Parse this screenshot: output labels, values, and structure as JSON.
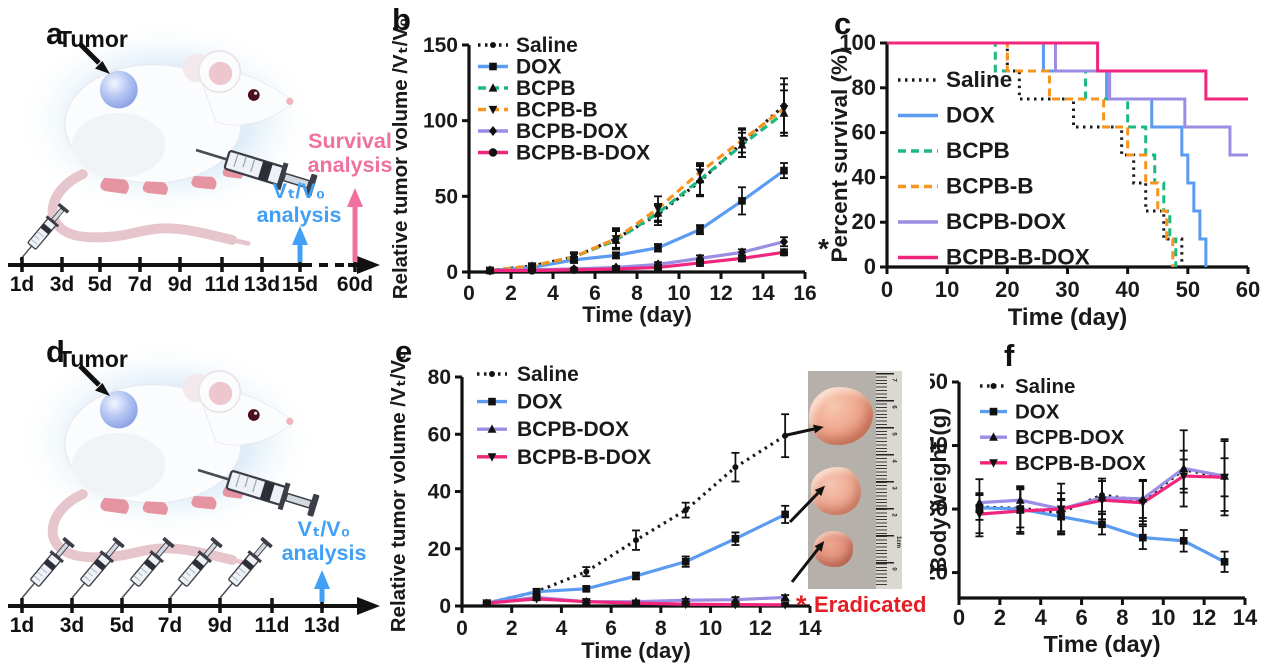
{
  "colors": {
    "black": "#1a1a1a",
    "dox_blue": "#5b9bf0",
    "bcpb_green": "#1db983",
    "bcpbb_orange": "#f7941d",
    "bcpbdox_purple": "#9b8ce4",
    "bcpbbdox_pink": "#f0267c",
    "analysis_blue": "#41a0f5",
    "analysis_pink": "#f0719f",
    "eradicated_red": "#e31e24"
  },
  "panel_a": {
    "label": "a",
    "tumor_label": "Tumor",
    "timeline": [
      "1d",
      "3d",
      "5d",
      "7d",
      "9d",
      "11d",
      "13d",
      "15d",
      "60d"
    ],
    "vt_analysis": "Vₜ/V₀\nanalysis",
    "survival_analysis": "Survival\nanalysis"
  },
  "panel_d": {
    "label": "d",
    "tumor_label": "Tumor",
    "timeline": [
      "1d",
      "3d",
      "5d",
      "7d",
      "9d",
      "11d",
      "13d"
    ],
    "vt_analysis": "Vₜ/V₀\nanalysis"
  },
  "panel_b": {
    "label": "b"
  },
  "panel_c": {
    "label": "c"
  },
  "panel_e": {
    "label": "e"
  },
  "panel_f": {
    "label": "f"
  },
  "photo": {
    "ruler_numbers": [
      "7",
      "6",
      "5",
      "4",
      "3",
      "2",
      "1cm",
      "0"
    ]
  },
  "chart_data": [
    {
      "id": "b",
      "type": "line",
      "xlabel": "Time (day)",
      "ylabel": "Relative tumor volume /Vₜ/V₀",
      "xlim": [
        0,
        16
      ],
      "ylim": [
        0,
        150
      ],
      "xticks": [
        0,
        2,
        4,
        6,
        8,
        10,
        12,
        14,
        16
      ],
      "yticks": [
        0,
        50,
        100,
        150
      ],
      "x": [
        1,
        3,
        5,
        7,
        9,
        11,
        13,
        15
      ],
      "series": [
        {
          "name": "Saline",
          "color": "#1a1a1a",
          "linestyle": "dotted",
          "marker": "dot",
          "values": [
            1,
            4,
            10,
            22,
            38,
            60,
            85,
            110
          ],
          "errors": [
            0.5,
            1.5,
            3,
            6,
            7,
            10,
            9,
            18
          ]
        },
        {
          "name": "DOX",
          "color": "#5b9bf0",
          "linestyle": "solid",
          "marker": "square",
          "values": [
            1,
            3,
            8,
            11,
            16,
            28,
            47,
            67
          ],
          "errors": [
            0.5,
            1.5,
            2,
            2,
            2.5,
            3,
            9,
            5
          ]
        },
        {
          "name": "BCPB",
          "color": "#1db983",
          "linestyle": "dashed",
          "marker": "triangle",
          "values": [
            1,
            4,
            10,
            21,
            39,
            61,
            84,
            105
          ],
          "errors": [
            0.5,
            1.5,
            3,
            6,
            6,
            10,
            8,
            15
          ]
        },
        {
          "name": "BCPB-B",
          "color": "#f7941d",
          "linestyle": "dashed",
          "marker": "triangle-down",
          "values": [
            1,
            4,
            10,
            22,
            42,
            66,
            87,
            108
          ],
          "errors": [
            0.5,
            1.5,
            3,
            7,
            8,
            6,
            8,
            16
          ]
        },
        {
          "name": "BCPB-DOX",
          "color": "#9b8ce4",
          "linestyle": "solid",
          "marker": "diamond",
          "values": [
            1,
            1.5,
            2,
            3,
            5,
            9,
            13,
            20
          ],
          "errors": [
            0.3,
            0.5,
            0.7,
            1,
            1.5,
            2,
            2,
            3
          ]
        },
        {
          "name": "BCPB-B-DOX",
          "color": "#f0267c",
          "linestyle": "solid",
          "marker": "circle",
          "values": [
            1,
            1,
            1.5,
            2,
            3,
            6,
            9,
            13
          ],
          "errors": [
            0.3,
            0.5,
            0.7,
            1,
            1.5,
            2,
            2,
            2
          ]
        }
      ],
      "annotations": [
        {
          "text": "*",
          "color": "#1a1a1a"
        }
      ]
    },
    {
      "id": "c",
      "type": "step",
      "xlabel": "Time (day)",
      "ylabel": "Percent survival (%)",
      "xlim": [
        0,
        60
      ],
      "ylim": [
        0,
        100
      ],
      "xticks": [
        0,
        10,
        20,
        30,
        40,
        50,
        60
      ],
      "yticks": [
        0,
        20,
        40,
        60,
        80,
        100
      ],
      "series": [
        {
          "name": "Saline",
          "color": "#1a1a1a",
          "linestyle": "dotted",
          "points": [
            [
              0,
              100
            ],
            [
              20,
              100
            ],
            [
              20,
              87.5
            ],
            [
              22,
              87.5
            ],
            [
              22,
              75
            ],
            [
              31,
              75
            ],
            [
              31,
              62.5
            ],
            [
              39,
              62.5
            ],
            [
              39,
              50
            ],
            [
              41,
              50
            ],
            [
              41,
              37.5
            ],
            [
              43,
              37.5
            ],
            [
              43,
              25
            ],
            [
              46,
              25
            ],
            [
              46,
              12.5
            ],
            [
              49,
              12.5
            ],
            [
              49,
              0
            ]
          ]
        },
        {
          "name": "DOX",
          "color": "#5b9bf0",
          "linestyle": "solid",
          "points": [
            [
              0,
              100
            ],
            [
              26,
              100
            ],
            [
              26,
              87.5
            ],
            [
              36.5,
              87.5
            ],
            [
              36.5,
              75
            ],
            [
              44,
              75
            ],
            [
              44,
              62.5
            ],
            [
              49,
              62.5
            ],
            [
              49,
              50
            ],
            [
              50,
              50
            ],
            [
              50,
              37.5
            ],
            [
              51,
              37.5
            ],
            [
              51,
              25
            ],
            [
              52,
              25
            ],
            [
              52,
              12.5
            ],
            [
              53,
              12.5
            ],
            [
              53,
              0
            ]
          ]
        },
        {
          "name": "BCPB",
          "color": "#1db983",
          "linestyle": "dashed",
          "points": [
            [
              0,
              100
            ],
            [
              18,
              100
            ],
            [
              18,
              87.5
            ],
            [
              33,
              87.5
            ],
            [
              33,
              75
            ],
            [
              40,
              75
            ],
            [
              40,
              62.5
            ],
            [
              43,
              62.5
            ],
            [
              43,
              50
            ],
            [
              44.5,
              50
            ],
            [
              44.5,
              37.5
            ],
            [
              46,
              37.5
            ],
            [
              46,
              25
            ],
            [
              47,
              25
            ],
            [
              47,
              12.5
            ],
            [
              48,
              12.5
            ],
            [
              48,
              0
            ]
          ]
        },
        {
          "name": "BCPB-B",
          "color": "#f7941d",
          "linestyle": "dashed",
          "points": [
            [
              0,
              100
            ],
            [
              20,
              100
            ],
            [
              20,
              87.5
            ],
            [
              27,
              87.5
            ],
            [
              27,
              75
            ],
            [
              36,
              75
            ],
            [
              36,
              62.5
            ],
            [
              40,
              62.5
            ],
            [
              40,
              50
            ],
            [
              43,
              50
            ],
            [
              43,
              37.5
            ],
            [
              45,
              37.5
            ],
            [
              45,
              25
            ],
            [
              46.5,
              25
            ],
            [
              46.5,
              12.5
            ],
            [
              47.5,
              12.5
            ],
            [
              47.5,
              0
            ]
          ]
        },
        {
          "name": "BCPB-DOX",
          "color": "#9b8ce4",
          "linestyle": "solid",
          "points": [
            [
              0,
              100
            ],
            [
              28,
              100
            ],
            [
              28,
              87.5
            ],
            [
              37,
              87.5
            ],
            [
              37,
              75
            ],
            [
              49.5,
              75
            ],
            [
              49.5,
              62.5
            ],
            [
              57,
              62.5
            ],
            [
              57,
              50
            ],
            [
              60,
              50
            ]
          ]
        },
        {
          "name": "BCPB-B-DOX",
          "color": "#f0267c",
          "linestyle": "solid",
          "points": [
            [
              0,
              100
            ],
            [
              35,
              100
            ],
            [
              35,
              87.5
            ],
            [
              53,
              87.5
            ],
            [
              53,
              75
            ],
            [
              60,
              75
            ]
          ]
        }
      ]
    },
    {
      "id": "e",
      "type": "line",
      "xlabel": "Time (day)",
      "ylabel": "Relative tumor volume /Vₜ/V₀",
      "xlim": [
        0,
        14
      ],
      "ylim": [
        0,
        80
      ],
      "xticks": [
        0,
        2,
        4,
        6,
        8,
        10,
        12,
        14
      ],
      "yticks": [
        0,
        20,
        40,
        60,
        80
      ],
      "x": [
        1,
        3,
        5,
        7,
        9,
        11,
        13
      ],
      "series": [
        {
          "name": "Saline",
          "color": "#1a1a1a",
          "linestyle": "dotted",
          "marker": "dot",
          "values": [
            1,
            5,
            12,
            23,
            33.5,
            48.5,
            59.5
          ],
          "errors": [
            0.4,
            0.8,
            1.6,
            3.4,
            2.6,
            5,
            7.5
          ]
        },
        {
          "name": "DOX",
          "color": "#5b9bf0",
          "linestyle": "solid",
          "marker": "square",
          "values": [
            1,
            5,
            6,
            10.5,
            15.5,
            23.5,
            32
          ],
          "errors": [
            0.4,
            0.8,
            0.9,
            1.2,
            1.8,
            2.2,
            3
          ]
        },
        {
          "name": "BCPB-DOX",
          "color": "#9b8ce4",
          "linestyle": "solid",
          "marker": "triangle",
          "values": [
            1,
            3,
            1.5,
            1.5,
            2,
            2.2,
            3
          ],
          "errors": [
            0.3,
            0.5,
            0.4,
            0.4,
            0.5,
            0.9,
            0.8
          ]
        },
        {
          "name": "BCPB-B-DOX",
          "color": "#f0267c",
          "linestyle": "solid",
          "marker": "triangle-down",
          "values": [
            1,
            2.5,
            1.5,
            1,
            0.6,
            0.5,
            0.4
          ],
          "errors": [
            0.3,
            0.5,
            0.4,
            0.3,
            0.3,
            0.3,
            0.3
          ]
        }
      ],
      "annotations": [
        {
          "text": "*",
          "color": "#e31e24"
        },
        {
          "text": "Eradicated",
          "color": "#e31e24"
        }
      ]
    },
    {
      "id": "f",
      "type": "line",
      "xlabel": "Time (day)",
      "ylabel": "Body weight (g)",
      "xlim": [
        0,
        14
      ],
      "ylim": [
        16,
        50
      ],
      "xticks": [
        0,
        2,
        4,
        6,
        8,
        10,
        12,
        14
      ],
      "yticks": [
        20,
        30,
        40,
        50
      ],
      "x": [
        1,
        3,
        5,
        7,
        9,
        11,
        13
      ],
      "series": [
        {
          "name": "Saline",
          "color": "#1a1a1a",
          "linestyle": "dotted",
          "marker": "dot",
          "values": [
            30.3,
            30.1,
            29.5,
            32.2,
            31.3,
            36.2,
            35
          ],
          "errors": [
            2,
            3,
            3,
            2.6,
            3.2,
            3,
            3
          ]
        },
        {
          "name": "DOX",
          "color": "#5b9bf0",
          "linestyle": "solid",
          "marker": "square",
          "values": [
            30.2,
            30,
            28.8,
            27.6,
            25.5,
            25,
            21.7
          ],
          "errors": [
            4.5,
            3.6,
            2.6,
            1.6,
            1.8,
            1.7,
            1.6
          ]
        },
        {
          "name": "BCPB-DOX",
          "color": "#9b8ce4",
          "linestyle": "solid",
          "marker": "triangle",
          "values": [
            31,
            31.4,
            30,
            31.8,
            31.6,
            36.4,
            35.2
          ],
          "errors": [
            1.5,
            2,
            1.6,
            2.6,
            3,
            6,
            5.5
          ]
        },
        {
          "name": "BCPB-B-DOX",
          "color": "#f0267c",
          "linestyle": "solid",
          "marker": "triangle-down",
          "values": [
            29.2,
            29.7,
            30,
            31.4,
            31,
            35.2,
            35
          ],
          "errors": [
            3,
            3.6,
            4,
            3,
            3.4,
            2.6,
            6
          ]
        }
      ]
    }
  ]
}
